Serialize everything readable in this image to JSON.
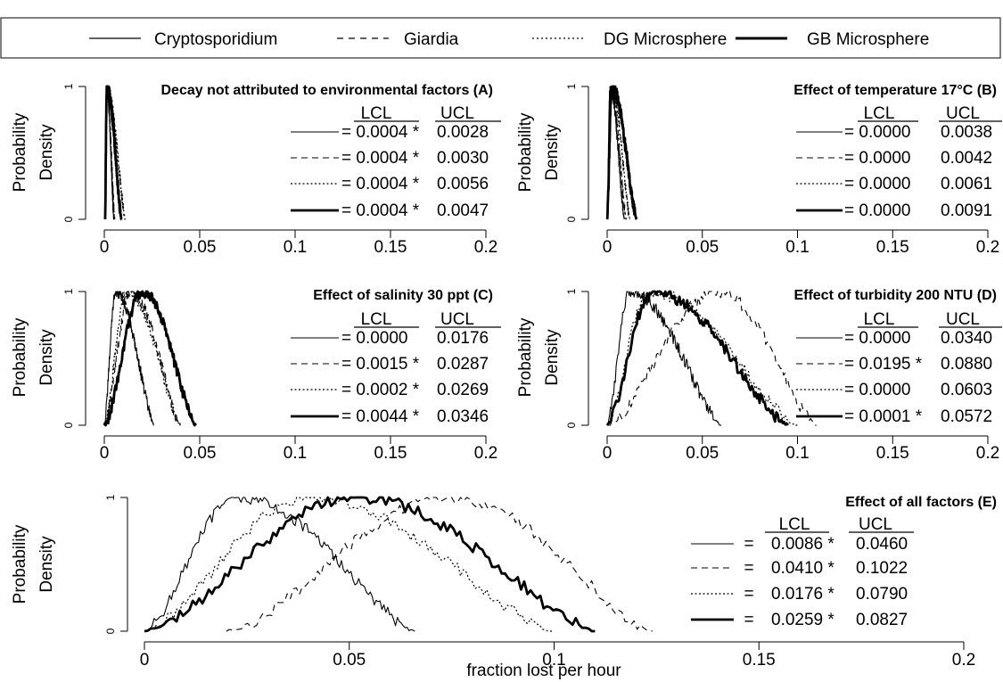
{
  "legend": {
    "entries": [
      {
        "label": "Cryptosporidium",
        "style": "solid"
      },
      {
        "label": "Giardia",
        "style": "dashed"
      },
      {
        "label": "DG Microsphere",
        "style": "dotted"
      },
      {
        "label": "GB Microsphere",
        "style": "thick"
      }
    ]
  },
  "ylabel_line1": "Probability",
  "ylabel_line2": "Density",
  "xlabel": "fraction lost per hour",
  "table_headers": {
    "lcl": "LCL",
    "ucl": "UCL"
  },
  "chart_data": [
    {
      "type": "line",
      "title": "Decay not attributed to environmental factors (A)",
      "xlim": [
        0,
        0.2
      ],
      "ylim": [
        0,
        1
      ],
      "x_ticks": [
        "0",
        "0.05",
        "0.1",
        "0.15",
        "0.2"
      ],
      "y_ticks": [
        "0",
        "1"
      ],
      "series": [
        {
          "name": "Cryptosporidium",
          "style": "solid",
          "lcl": "= 0.0004 *",
          "ucl": "0.0028",
          "mode": 0.0012,
          "left": 0.0004,
          "right": 0.005
        },
        {
          "name": "Giardia",
          "style": "dashed",
          "lcl": "= 0.0004 *",
          "ucl": "0.0030",
          "mode": 0.0012,
          "left": 0.0004,
          "right": 0.0055
        },
        {
          "name": "DG Microsphere",
          "style": "dotted",
          "lcl": "= 0.0004 *",
          "ucl": "0.0056",
          "mode": 0.0013,
          "left": 0.0004,
          "right": 0.011
        },
        {
          "name": "GB Microsphere",
          "style": "thick",
          "lcl": "= 0.0004 *",
          "ucl": "0.0047",
          "mode": 0.0013,
          "left": 0.0004,
          "right": 0.009
        }
      ]
    },
    {
      "type": "line",
      "title": "Effect of temperature 17°C (B)",
      "xlim": [
        0,
        0.2
      ],
      "ylim": [
        0,
        1
      ],
      "x_ticks": [
        "0",
        "0.05",
        "0.1",
        "0.15",
        "0.2"
      ],
      "y_ticks": [
        "0",
        "1"
      ],
      "series": [
        {
          "name": "Cryptosporidium",
          "style": "solid",
          "lcl": "= 0.0000",
          "ucl": "0.0038",
          "mode": 0.0015,
          "left": 0.0,
          "right": 0.009
        },
        {
          "name": "Giardia",
          "style": "dashed",
          "lcl": "= 0.0000",
          "ucl": "0.0042",
          "mode": 0.0018,
          "left": 0.0,
          "right": 0.01
        },
        {
          "name": "DG Microsphere",
          "style": "dotted",
          "lcl": "= 0.0000",
          "ucl": "0.0061",
          "mode": 0.002,
          "left": 0.0,
          "right": 0.012
        },
        {
          "name": "GB Microsphere",
          "style": "thick",
          "lcl": "= 0.0000",
          "ucl": "0.0091",
          "mode": 0.0025,
          "left": 0.0,
          "right": 0.0155
        }
      ]
    },
    {
      "type": "line",
      "title": "Effect of salinity 30 ppt (C)",
      "xlim": [
        0,
        0.2
      ],
      "ylim": [
        0,
        1
      ],
      "x_ticks": [
        "0",
        "0.05",
        "0.1",
        "0.15",
        "0.2"
      ],
      "y_ticks": [
        "0",
        "1"
      ],
      "series": [
        {
          "name": "Cryptosporidium",
          "style": "solid",
          "lcl": "= 0.0000",
          "ucl": "0.0176",
          "mode": 0.006,
          "left": 0.0,
          "right": 0.026
        },
        {
          "name": "Giardia",
          "style": "dashed",
          "lcl": "= 0.0015 *",
          "ucl": "0.0287",
          "mode": 0.014,
          "left": 0.0,
          "right": 0.04
        },
        {
          "name": "DG Microsphere",
          "style": "dotted",
          "lcl": "= 0.0002 *",
          "ucl": "0.0269",
          "mode": 0.012,
          "left": 0.0,
          "right": 0.04
        },
        {
          "name": "GB Microsphere",
          "style": "thick",
          "lcl": "= 0.0044 *",
          "ucl": "0.0346",
          "mode": 0.02,
          "left": 0.0,
          "right": 0.048
        }
      ]
    },
    {
      "type": "line",
      "title": "Effect of turbidity 200 NTU (D)",
      "xlim": [
        0,
        0.2
      ],
      "ylim": [
        0,
        1
      ],
      "x_ticks": [
        "0",
        "0.05",
        "0.1",
        "0.15",
        "0.2"
      ],
      "y_ticks": [
        "0",
        "1"
      ],
      "series": [
        {
          "name": "Cryptosporidium",
          "style": "solid",
          "lcl": "= 0.0000",
          "ucl": "0.0340",
          "mode": 0.012,
          "left": 0.0,
          "right": 0.06
        },
        {
          "name": "Giardia",
          "style": "dashed",
          "lcl": "= 0.0195 *",
          "ucl": "0.0880",
          "mode": 0.058,
          "left": 0.0,
          "right": 0.11
        },
        {
          "name": "DG Microsphere",
          "style": "dotted",
          "lcl": "= 0.0000",
          "ucl": "0.0603",
          "mode": 0.022,
          "left": 0.0,
          "right": 0.1
        },
        {
          "name": "GB Microsphere",
          "style": "thick",
          "lcl": "= 0.0001 *",
          "ucl": "0.0572",
          "mode": 0.024,
          "left": 0.0,
          "right": 0.095
        }
      ]
    },
    {
      "type": "line",
      "title": "Effect of all factors (E)",
      "xlim": [
        0,
        0.2
      ],
      "ylim": [
        0,
        1
      ],
      "x_ticks": [
        "0",
        "0.05",
        "0.1",
        "0.15",
        "0.2"
      ],
      "y_ticks": [
        "0",
        "1"
      ],
      "series": [
        {
          "name": "Cryptosporidium",
          "style": "solid",
          "lcl": "0.0086 *",
          "ucl": "0.0460",
          "mode": 0.023,
          "left": 0.0,
          "right": 0.066
        },
        {
          "name": "Giardia",
          "style": "dashed",
          "lcl": "0.0410 *",
          "ucl": "0.1022",
          "mode": 0.075,
          "left": 0.02,
          "right": 0.124
        },
        {
          "name": "DG Microsphere",
          "style": "dotted",
          "lcl": "0.0176 *",
          "ucl": "0.0790",
          "mode": 0.04,
          "left": 0.0,
          "right": 0.1
        },
        {
          "name": "GB Microsphere",
          "style": "thick",
          "lcl": "0.0259 *",
          "ucl": "0.0827",
          "mode": 0.052,
          "left": 0.0,
          "right": 0.11
        }
      ]
    }
  ]
}
